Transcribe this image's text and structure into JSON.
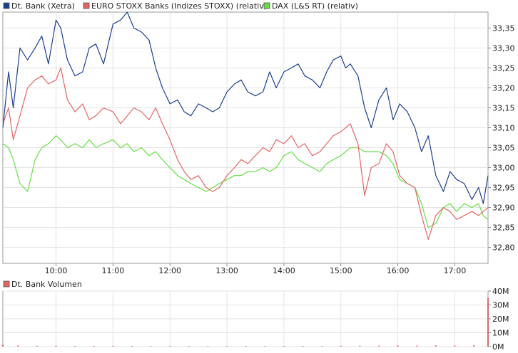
{
  "price_panel": {
    "legend": [
      {
        "label": "Dt. Bank (Xetra)",
        "color": "#1c3f8f"
      },
      {
        "label": "EURO STOXX Banks (Indizes STOXX) (relativ)",
        "color": "#e06666"
      },
      {
        "label": "DAX (L&S RT) (relativ)",
        "color": "#66dd44"
      }
    ]
  },
  "volume_panel": {
    "legend": [
      {
        "label": "Dt. Bank Volumen",
        "color": "#e06666"
      }
    ]
  },
  "chart_data": [
    {
      "type": "line",
      "panel": "price",
      "y_axis_side": "right",
      "ylim": [
        32.76,
        33.39
      ],
      "xlim": [
        "09:04",
        "17:35"
      ],
      "grid": true,
      "legend_position": "top-left",
      "x_ticks": [
        "10:00",
        "11:00",
        "12:00",
        "13:00",
        "14:00",
        "15:00",
        "16:00",
        "17:00"
      ],
      "y_ticks": [
        "32,80",
        "32,85",
        "32,90",
        "32,95",
        "33,00",
        "33,05",
        "33,10",
        "33,15",
        "33,20",
        "33,25",
        "33,30",
        "33,35"
      ],
      "series": [
        {
          "name": "Dt. Bank (Xetra)",
          "color": "#1c3f8f",
          "x": [
            "09:04",
            "09:10",
            "09:15",
            "09:22",
            "09:30",
            "09:38",
            "09:45",
            "09:52",
            "10:00",
            "10:05",
            "10:12",
            "10:20",
            "10:28",
            "10:35",
            "10:42",
            "10:50",
            "11:00",
            "11:08",
            "11:15",
            "11:22",
            "11:30",
            "11:38",
            "11:45",
            "11:52",
            "12:00",
            "12:08",
            "12:15",
            "12:22",
            "12:30",
            "12:38",
            "12:45",
            "12:52",
            "13:00",
            "13:08",
            "13:15",
            "13:22",
            "13:30",
            "13:38",
            "13:45",
            "13:52",
            "14:00",
            "14:08",
            "14:15",
            "14:22",
            "14:30",
            "14:38",
            "14:45",
            "14:52",
            "15:00",
            "15:05",
            "15:10",
            "15:18",
            "15:25",
            "15:32",
            "15:40",
            "15:48",
            "15:55",
            "16:02",
            "16:10",
            "16:18",
            "16:25",
            "16:32",
            "16:40",
            "16:48",
            "16:55",
            "17:02",
            "17:10",
            "17:18",
            "17:25",
            "17:30",
            "17:35"
          ],
          "values": [
            33.1,
            33.24,
            33.15,
            33.3,
            33.27,
            33.3,
            33.33,
            33.26,
            33.37,
            33.35,
            33.27,
            33.23,
            33.24,
            33.3,
            33.31,
            33.26,
            33.36,
            33.37,
            33.39,
            33.35,
            33.34,
            33.32,
            33.25,
            33.2,
            33.16,
            33.17,
            33.14,
            33.13,
            33.16,
            33.15,
            33.14,
            33.15,
            33.19,
            33.21,
            33.22,
            33.19,
            33.18,
            33.19,
            33.24,
            33.2,
            33.24,
            33.25,
            33.26,
            33.23,
            33.22,
            33.2,
            33.24,
            33.27,
            33.28,
            33.25,
            33.26,
            33.23,
            33.15,
            33.1,
            33.17,
            33.2,
            33.12,
            33.16,
            33.14,
            33.1,
            33.04,
            33.08,
            32.98,
            32.94,
            32.99,
            32.97,
            32.96,
            32.92,
            32.95,
            32.91,
            32.98
          ]
        },
        {
          "name": "EURO STOXX Banks (Indizes STOXX) (relativ)",
          "color": "#e06666",
          "x": [
            "09:04",
            "09:10",
            "09:15",
            "09:22",
            "09:30",
            "09:38",
            "09:45",
            "09:52",
            "10:00",
            "10:05",
            "10:12",
            "10:20",
            "10:28",
            "10:35",
            "10:42",
            "10:50",
            "11:00",
            "11:08",
            "11:15",
            "11:22",
            "11:30",
            "11:38",
            "11:45",
            "11:52",
            "12:00",
            "12:08",
            "12:15",
            "12:22",
            "12:30",
            "12:38",
            "12:45",
            "12:52",
            "13:00",
            "13:08",
            "13:15",
            "13:22",
            "13:30",
            "13:38",
            "13:45",
            "13:52",
            "14:00",
            "14:08",
            "14:15",
            "14:22",
            "14:30",
            "14:38",
            "14:45",
            "14:52",
            "15:00",
            "15:05",
            "15:10",
            "15:18",
            "15:25",
            "15:32",
            "15:40",
            "15:48",
            "15:55",
            "16:02",
            "16:10",
            "16:18",
            "16:25",
            "16:32",
            "16:40",
            "16:48",
            "16:55",
            "17:02",
            "17:10",
            "17:18",
            "17:25",
            "17:30",
            "17:35"
          ],
          "values": [
            33.11,
            33.15,
            33.07,
            33.13,
            33.2,
            33.22,
            33.23,
            33.21,
            33.22,
            33.25,
            33.17,
            33.14,
            33.16,
            33.12,
            33.13,
            33.15,
            33.14,
            33.11,
            33.13,
            33.15,
            33.14,
            33.12,
            33.15,
            33.11,
            33.07,
            33.02,
            32.99,
            32.97,
            32.98,
            32.95,
            32.94,
            32.95,
            32.98,
            33.0,
            33.02,
            33.01,
            33.03,
            33.05,
            33.04,
            33.07,
            33.06,
            33.08,
            33.05,
            33.06,
            33.03,
            33.04,
            33.06,
            33.08,
            33.09,
            33.1,
            33.11,
            33.06,
            32.93,
            33.0,
            33.01,
            33.06,
            33.04,
            32.98,
            32.96,
            32.95,
            32.88,
            32.82,
            32.88,
            32.9,
            32.89,
            32.87,
            32.88,
            32.89,
            32.88,
            32.89,
            32.9
          ]
        },
        {
          "name": "DAX (L&S RT) (relativ)",
          "color": "#66dd44",
          "x": [
            "09:04",
            "09:10",
            "09:15",
            "09:22",
            "09:30",
            "09:38",
            "09:45",
            "09:52",
            "10:00",
            "10:05",
            "10:12",
            "10:20",
            "10:28",
            "10:35",
            "10:42",
            "10:50",
            "11:00",
            "11:08",
            "11:15",
            "11:22",
            "11:30",
            "11:38",
            "11:45",
            "11:52",
            "12:00",
            "12:08",
            "12:15",
            "12:22",
            "12:30",
            "12:38",
            "12:45",
            "12:52",
            "13:00",
            "13:08",
            "13:15",
            "13:22",
            "13:30",
            "13:38",
            "13:45",
            "13:52",
            "14:00",
            "14:08",
            "14:15",
            "14:22",
            "14:30",
            "14:38",
            "14:45",
            "14:52",
            "15:00",
            "15:05",
            "15:10",
            "15:18",
            "15:25",
            "15:32",
            "15:40",
            "15:48",
            "15:55",
            "16:02",
            "16:10",
            "16:18",
            "16:25",
            "16:32",
            "16:40",
            "16:48",
            "16:55",
            "17:02",
            "17:10",
            "17:18",
            "17:25",
            "17:30",
            "17:35"
          ],
          "values": [
            33.06,
            33.05,
            33.02,
            32.96,
            32.94,
            33.02,
            33.05,
            33.06,
            33.08,
            33.07,
            33.05,
            33.06,
            33.05,
            33.07,
            33.05,
            33.06,
            33.07,
            33.05,
            33.06,
            33.04,
            33.05,
            33.03,
            33.04,
            33.02,
            33.0,
            32.98,
            32.97,
            32.96,
            32.95,
            32.94,
            32.95,
            32.96,
            32.97,
            32.98,
            32.98,
            32.99,
            32.99,
            33.0,
            32.99,
            33.0,
            33.03,
            33.04,
            33.02,
            33.01,
            33.0,
            32.99,
            33.01,
            33.02,
            33.03,
            33.04,
            33.05,
            33.05,
            33.04,
            33.04,
            33.04,
            33.03,
            33.01,
            32.97,
            32.96,
            32.95,
            32.91,
            32.85,
            32.86,
            32.9,
            32.91,
            32.89,
            32.91,
            32.9,
            32.91,
            32.88,
            32.87
          ]
        }
      ]
    },
    {
      "type": "bar",
      "panel": "volume",
      "y_axis_side": "right",
      "ylim": [
        0,
        40
      ],
      "xlim": [
        "09:04",
        "17:35"
      ],
      "grid": true,
      "legend_position": "top-left",
      "y_ticks": [
        "0M",
        "10M",
        "20M",
        "30M",
        "40M"
      ],
      "series": [
        {
          "name": "Dt. Bank Volumen",
          "color": "#e06666",
          "x": [
            "09:04",
            "09:20",
            "09:40",
            "10:00",
            "10:20",
            "10:40",
            "11:00",
            "11:20",
            "11:40",
            "12:00",
            "12:20",
            "12:40",
            "13:00",
            "13:20",
            "13:40",
            "14:00",
            "14:20",
            "14:40",
            "15:00",
            "15:20",
            "15:40",
            "16:00",
            "16:20",
            "16:40",
            "17:00",
            "17:20",
            "17:35"
          ],
          "values": [
            1.2,
            0.8,
            0.6,
            0.7,
            0.5,
            0.5,
            0.6,
            0.5,
            0.4,
            0.5,
            0.4,
            0.4,
            0.4,
            0.5,
            0.4,
            0.5,
            0.5,
            0.4,
            0.6,
            0.6,
            0.7,
            0.8,
            0.7,
            0.9,
            0.8,
            1.0,
            35
          ]
        }
      ]
    }
  ]
}
